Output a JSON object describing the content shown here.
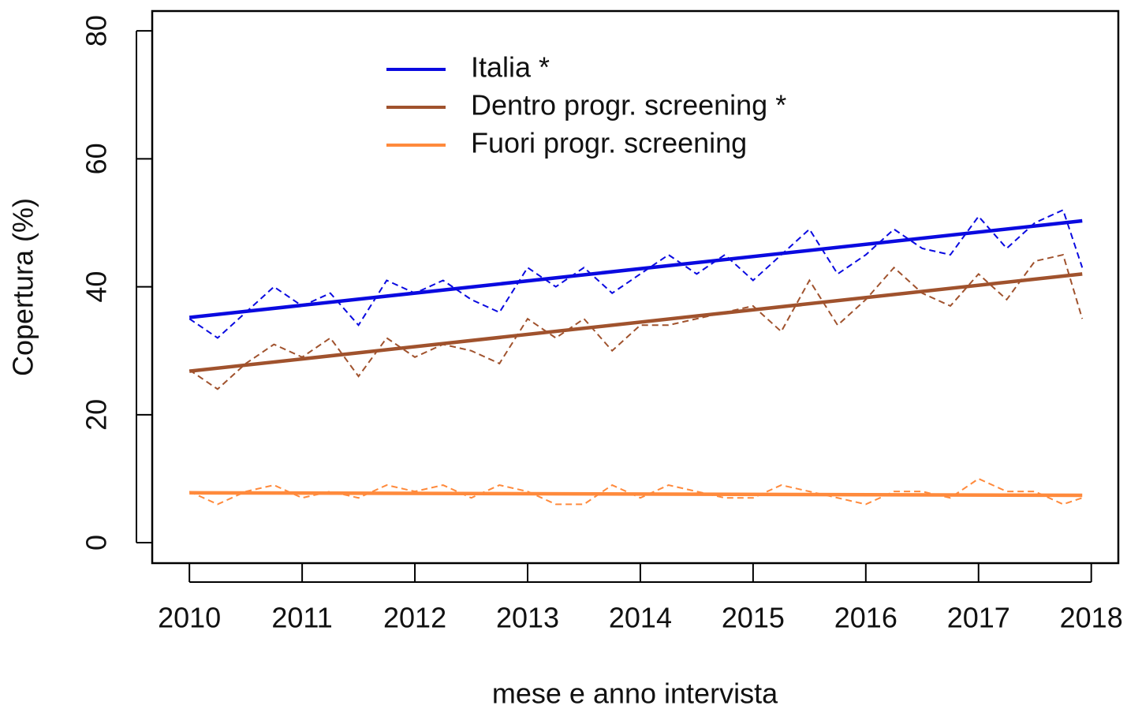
{
  "chart_data": {
    "type": "line",
    "x_label": "mese e anno intervista",
    "y_label": "Copertura (%)",
    "x": [
      2010,
      2010.25,
      2010.5,
      2010.75,
      2011,
      2011.25,
      2011.5,
      2011.75,
      2012,
      2012.25,
      2012.5,
      2012.75,
      2013,
      2013.25,
      2013.5,
      2013.75,
      2014,
      2014.25,
      2014.5,
      2014.75,
      2015,
      2015.25,
      2015.5,
      2015.75,
      2016,
      2016.25,
      2016.5,
      2016.75,
      2017,
      2017.25,
      2017.5,
      2017.75,
      2017.92
    ],
    "trend_x": [
      2010,
      2017.92
    ],
    "series": [
      {
        "name": "Italia *",
        "color": "#0a0ae0",
        "values": [
          35,
          32,
          36,
          40,
          37,
          39,
          34,
          41,
          39,
          41,
          38,
          36,
          43,
          40,
          43,
          39,
          42,
          45,
          42,
          45,
          41,
          45,
          49,
          42,
          45,
          49,
          46,
          45,
          51,
          46,
          50,
          52,
          43
        ],
        "trend": [
          35.2,
          50.3
        ]
      },
      {
        "name": "Dentro progr. screening *",
        "color": "#a0522d",
        "values": [
          27,
          24,
          28,
          31,
          29,
          32,
          26,
          32,
          29,
          31,
          30,
          28,
          35,
          32,
          35,
          30,
          34,
          34,
          35,
          36,
          37,
          33,
          41,
          34,
          38,
          43,
          39,
          37,
          42,
          38,
          44,
          45,
          35
        ],
        "trend": [
          26.8,
          42.0
        ]
      },
      {
        "name": "Fuori progr. screening",
        "color": "#ff8a3c",
        "values": [
          8,
          6,
          8,
          9,
          7,
          8,
          7,
          9,
          8,
          9,
          7,
          9,
          8,
          6,
          6,
          9,
          7,
          9,
          8,
          7,
          7,
          9,
          8,
          7,
          6,
          8,
          8,
          7,
          10,
          8,
          8,
          6,
          7
        ],
        "trend": [
          7.8,
          7.4
        ]
      }
    ],
    "xlim": [
      2009.67,
      2018.24
    ],
    "ylim": [
      -3.2,
      83.1
    ],
    "xticks": [
      2010,
      2011,
      2012,
      2013,
      2014,
      2015,
      2016,
      2017,
      2018
    ],
    "yticks": [
      0,
      20,
      40,
      60,
      80
    ],
    "legend": "top-center"
  }
}
